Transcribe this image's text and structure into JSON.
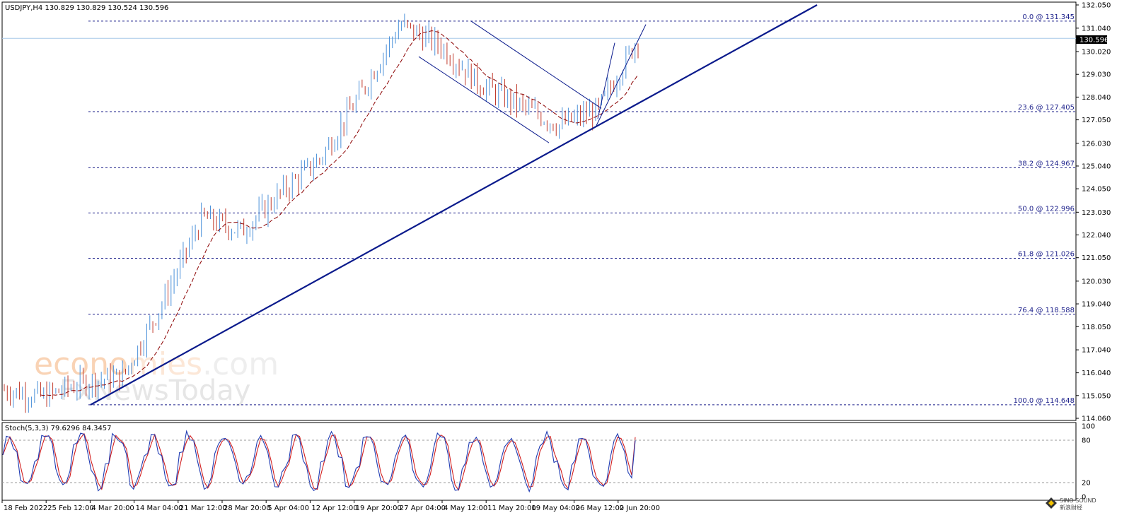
{
  "header": {
    "symbol_info": "USDJPY,H4  130.829 130.829 130.524 130.596"
  },
  "current_price_label": "130.596",
  "y_ticks": [
    "132.050",
    "131.040",
    "130.020",
    "129.030",
    "128.040",
    "127.050",
    "126.030",
    "125.040",
    "124.050",
    "123.030",
    "122.040",
    "121.050",
    "120.030",
    "119.040",
    "118.050",
    "117.040",
    "116.040",
    "115.050",
    "114.060"
  ],
  "x_ticks": [
    "18 Feb 2022",
    "25 Feb 12:00",
    "4 Mar 20:00",
    "14 Mar 04:00",
    "21 Mar 12:00",
    "28 Mar 20:00",
    "5 Apr 04:00",
    "12 Apr 12:00",
    "19 Apr 20:00",
    "27 Apr 04:00",
    "4 May 12:00",
    "11 May 20:00",
    "19 May 04:00",
    "26 May 12:00",
    "2 Jun 20:00"
  ],
  "fib_levels": [
    {
      "label": "0.0 @ 131.345",
      "price": 131.345
    },
    {
      "label": "23.6 @ 127.405",
      "price": 127.405
    },
    {
      "label": "38.2 @ 124.967",
      "price": 124.967
    },
    {
      "label": "50.0 @ 122.996",
      "price": 122.996
    },
    {
      "label": "61.8 @ 121.026",
      "price": 121.026
    },
    {
      "label": "76.4 @ 118.588",
      "price": 118.588
    },
    {
      "label": "100.0 @ 114.648",
      "price": 114.648
    }
  ],
  "stoch": {
    "label": "Stoch(5,3,3) 79.6296 84.3457",
    "ticks": [
      "100",
      "80",
      "20",
      "0"
    ]
  },
  "watermark": {
    "line1_a": "econo",
    "line1_b": "mies",
    "line1_c": ".com",
    "line2": "FxNewsToday"
  },
  "logo": {
    "text1": "SINO SOUND",
    "text2": "新浪财经"
  },
  "colors": {
    "bull_candle": "#4a90d9",
    "bear_candle": "#c0392b",
    "trendline": "#0a1a8c",
    "fib": "#1b1f8a",
    "ma": "#8b0000",
    "stoch_main": "#1f3bb3",
    "stoch_signal": "#d21f1f"
  },
  "chart_data": {
    "type": "candlestick",
    "title": "USDJPY,H4",
    "ylim": [
      114.06,
      132.05
    ],
    "x": [
      "18 Feb 2022",
      "25 Feb 12:00",
      "4 Mar 20:00",
      "14 Mar 04:00",
      "21 Mar 12:00",
      "28 Mar 20:00",
      "5 Apr 04:00",
      "12 Apr 12:00",
      "19 Apr 20:00",
      "27 Apr 04:00",
      "4 May 12:00",
      "11 May 20:00",
      "19 May 04:00",
      "26 May 12:00",
      "2 Jun 20:00"
    ],
    "close_path": [
      115.3,
      115.0,
      115.6,
      115.9,
      119.1,
      122.8,
      122.2,
      123.9,
      125.4,
      128.2,
      131.2,
      130.3,
      128.6,
      127.7,
      126.8,
      127.5,
      130.6
    ],
    "last_ohlc": {
      "open": 130.829,
      "high": 130.829,
      "low": 130.524,
      "close": 130.596
    },
    "fibonacci": [
      {
        "level": "0.0",
        "price": 131.345
      },
      {
        "level": "23.6",
        "price": 127.405
      },
      {
        "level": "38.2",
        "price": 124.967
      },
      {
        "level": "50.0",
        "price": 122.996
      },
      {
        "level": "61.8",
        "price": 121.026
      },
      {
        "level": "76.4",
        "price": 118.588
      },
      {
        "level": "100.0",
        "price": 114.648
      }
    ],
    "stochastic": {
      "params": "5,3,3",
      "main": 79.6296,
      "signal": 84.3457,
      "levels": [
        80,
        20
      ]
    }
  }
}
